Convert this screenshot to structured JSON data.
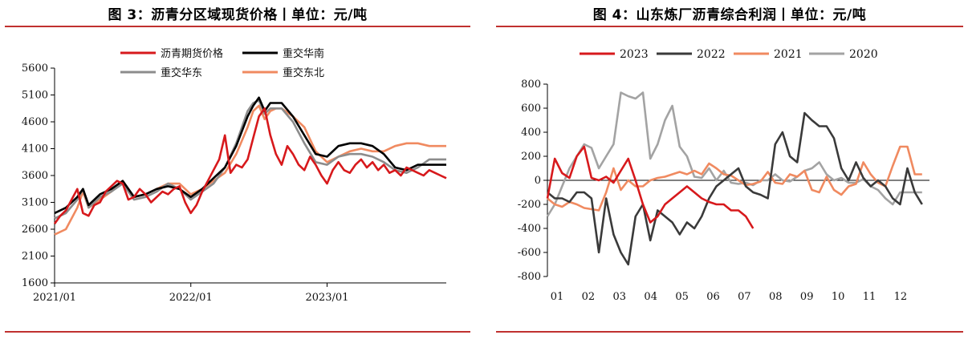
{
  "chart_data": [
    {
      "type": "line",
      "title": "图 3：沥青分区域现货价格丨单位：元/吨",
      "xlabel": "",
      "ylabel": "",
      "ylim": [
        1600,
        5600
      ],
      "yticks": [
        1600,
        2100,
        2600,
        3100,
        3600,
        4100,
        4600,
        5100,
        5600
      ],
      "xticks": [
        "2021/01",
        "2022/01",
        "2023/01"
      ],
      "legend": "top-center",
      "grid": false,
      "x_unit": "month index from 2021/01",
      "series": [
        {
          "name": "沥青期货价格",
          "color": "#d7191c",
          "x": [
            0,
            0.5,
            1,
            1.5,
            2,
            2.5,
            3,
            3.5,
            4,
            4.5,
            5,
            5.5,
            6,
            6.5,
            7,
            7.5,
            8,
            8.5,
            9,
            9.5,
            10,
            10.5,
            11,
            11.5,
            12,
            12.5,
            13,
            13.5,
            14,
            14.5,
            15,
            15.5,
            16,
            16.5,
            17,
            17.5,
            18,
            18.5,
            19,
            19.5,
            20,
            20.5,
            21,
            21.5,
            22,
            22.5,
            23,
            23.5,
            24,
            24.5,
            25,
            25.5,
            26,
            26.5,
            27,
            27.5,
            28,
            28.5,
            29,
            29.5,
            30,
            30.5,
            31,
            31.5,
            32,
            32.5,
            33,
            33.5,
            34,
            34.5
          ],
          "values": [
            2700,
            2850,
            2950,
            3150,
            3350,
            2900,
            2850,
            3050,
            3100,
            3300,
            3400,
            3500,
            3450,
            3150,
            3200,
            3350,
            3250,
            3100,
            3200,
            3300,
            3250,
            3350,
            3400,
            3100,
            2900,
            3050,
            3300,
            3500,
            3700,
            3900,
            4350,
            3650,
            3800,
            3750,
            3900,
            4300,
            4700,
            4850,
            4350,
            4000,
            3800,
            4150,
            4000,
            3800,
            3700,
            3950,
            3800,
            3600,
            3450,
            3700,
            3850,
            3700,
            3650,
            3800,
            3900,
            3750,
            3850,
            3700,
            3800,
            3650,
            3700,
            3600,
            3750,
            3700,
            3650,
            3600,
            3700,
            3650,
            3600,
            3550
          ]
        },
        {
          "name": "重交华南",
          "color": "#000000",
          "x": [
            0,
            1,
            2,
            2.5,
            3,
            4,
            5,
            6,
            7,
            8,
            9,
            10,
            11,
            12,
            13,
            14,
            15,
            16,
            17,
            17.5,
            18,
            18.5,
            19,
            19.5,
            20,
            21,
            22,
            23,
            24,
            25,
            26,
            27,
            28,
            29,
            30,
            31,
            32,
            33,
            34,
            34.5
          ],
          "values": [
            2900,
            3000,
            3200,
            3350,
            3050,
            3250,
            3350,
            3500,
            3200,
            3250,
            3350,
            3400,
            3350,
            3200,
            3350,
            3550,
            3750,
            4150,
            4700,
            4900,
            5050,
            4800,
            4950,
            4950,
            4950,
            4700,
            4350,
            4000,
            3950,
            4150,
            4200,
            4200,
            4150,
            4000,
            3750,
            3700,
            3800,
            3800,
            3800,
            3800
          ]
        },
        {
          "name": "重交华东",
          "color": "#8c8c8c",
          "x": [
            0,
            1,
            2,
            2.5,
            3,
            4,
            5,
            6,
            7,
            8,
            9,
            10,
            11,
            12,
            13,
            14,
            15,
            16,
            17,
            17.5,
            18,
            18.5,
            19,
            19.5,
            20,
            21,
            22,
            23,
            24,
            25,
            26,
            27,
            28,
            29,
            30,
            31,
            32,
            33,
            34,
            34.5
          ],
          "values": [
            2800,
            2900,
            3150,
            3350,
            3000,
            3200,
            3300,
            3450,
            3150,
            3200,
            3300,
            3450,
            3350,
            3150,
            3300,
            3450,
            3750,
            4200,
            4800,
            4950,
            5000,
            4750,
            4850,
            4850,
            4850,
            4600,
            4200,
            3850,
            3800,
            3950,
            4000,
            4000,
            3950,
            3850,
            3700,
            3650,
            3750,
            3900,
            3900,
            3900
          ]
        },
        {
          "name": "重交东北",
          "color": "#f08a60",
          "x": [
            0,
            1,
            2,
            2.5,
            3,
            4,
            5,
            6,
            7,
            8,
            9,
            10,
            11,
            12,
            13,
            14,
            15,
            16,
            17,
            17.5,
            18,
            18.5,
            19,
            19.5,
            20,
            21,
            22,
            23,
            24,
            25,
            26,
            27,
            28,
            29,
            30,
            31,
            32,
            33,
            34,
            34.5
          ],
          "values": [
            2500,
            2600,
            3000,
            3300,
            3000,
            3150,
            3300,
            3500,
            3200,
            3250,
            3350,
            3450,
            3450,
            3250,
            3350,
            3500,
            3650,
            4000,
            4500,
            4800,
            4900,
            4650,
            4800,
            4850,
            4850,
            4700,
            4500,
            4050,
            3850,
            3950,
            4050,
            4100,
            4050,
            4050,
            4150,
            4200,
            4200,
            4150,
            4150,
            4150
          ]
        }
      ]
    },
    {
      "type": "line",
      "title": "图 4：山东炼厂沥青综合利润丨单位：元/吨",
      "xlabel": "",
      "ylabel": "",
      "ylim": [
        -800,
        800
      ],
      "yticks": [
        -800,
        -600,
        -400,
        -200,
        0,
        200,
        400,
        600,
        800
      ],
      "categories": [
        "01",
        "02",
        "03",
        "04",
        "05",
        "06",
        "07",
        "08",
        "09",
        "10",
        "11",
        "12"
      ],
      "legend": "top-center",
      "grid": false,
      "x_unit": "week index 0–52",
      "series": [
        {
          "name": "2023",
          "color": "#d7191c",
          "x": [
            0,
            1,
            2,
            3,
            4,
            5,
            6,
            7,
            8,
            9,
            10,
            11,
            12,
            13,
            14,
            15,
            16,
            17,
            18,
            19,
            20,
            21,
            22,
            23,
            24,
            25,
            26,
            27,
            28
          ],
          "values": [
            -150,
            180,
            60,
            20,
            200,
            280,
            20,
            0,
            30,
            -20,
            80,
            180,
            0,
            -200,
            -350,
            -300,
            -200,
            -150,
            -100,
            -50,
            -100,
            -150,
            -180,
            -200,
            -200,
            -250,
            -250,
            -300,
            -400
          ]
        },
        {
          "name": "2022",
          "color": "#3a3a3a",
          "x": [
            0,
            1,
            2,
            3,
            4,
            5,
            6,
            7,
            8,
            9,
            10,
            11,
            12,
            13,
            14,
            15,
            16,
            17,
            18,
            19,
            20,
            21,
            22,
            23,
            24,
            25,
            26,
            27,
            28,
            29,
            30,
            31,
            32,
            33,
            34,
            35,
            36,
            37,
            38,
            39,
            40,
            41,
            42,
            43,
            44,
            45,
            46,
            47,
            48,
            49,
            50,
            51
          ],
          "values": [
            -100,
            -150,
            -150,
            -180,
            -100,
            -100,
            -150,
            -600,
            -150,
            -450,
            -600,
            -700,
            -300,
            -200,
            -500,
            -250,
            -300,
            -350,
            -450,
            -350,
            -400,
            -300,
            -150,
            -50,
            0,
            50,
            100,
            -50,
            -100,
            -120,
            -150,
            300,
            400,
            200,
            150,
            560,
            500,
            450,
            450,
            350,
            100,
            0,
            150,
            20,
            -50,
            0,
            -50,
            -150,
            -200,
            100,
            -100,
            -200
          ]
        },
        {
          "name": "2021",
          "color": "#f08a60",
          "x": [
            0,
            1,
            2,
            3,
            4,
            5,
            6,
            7,
            8,
            9,
            10,
            11,
            12,
            13,
            14,
            15,
            16,
            17,
            18,
            19,
            20,
            21,
            22,
            23,
            24,
            25,
            26,
            27,
            28,
            29,
            30,
            31,
            32,
            33,
            34,
            35,
            36,
            37,
            38,
            39,
            40,
            41,
            42,
            43,
            44,
            45,
            46,
            47,
            48,
            49,
            50,
            51
          ],
          "values": [
            -150,
            -200,
            -220,
            -180,
            -200,
            -230,
            -240,
            -250,
            -100,
            100,
            -80,
            0,
            -50,
            -50,
            0,
            20,
            30,
            50,
            70,
            50,
            80,
            50,
            140,
            100,
            50,
            40,
            0,
            -40,
            -30,
            -10,
            70,
            -20,
            -30,
            50,
            30,
            80,
            -80,
            -100,
            30,
            -80,
            -120,
            -50,
            -30,
            150,
            50,
            -20,
            -50,
            120,
            280,
            280,
            50,
            50
          ]
        },
        {
          "name": "2020",
          "color": "#a3a3a3",
          "x": [
            0,
            1,
            2,
            3,
            4,
            5,
            6,
            7,
            8,
            9,
            10,
            11,
            12,
            13,
            14,
            15,
            16,
            17,
            18,
            19,
            20,
            21,
            22,
            23,
            24,
            25,
            26,
            27,
            28,
            29,
            30,
            31,
            32,
            33,
            34,
            35,
            36,
            37,
            38,
            39,
            40,
            41,
            42,
            43,
            44,
            45,
            46,
            47,
            48,
            49,
            50,
            51
          ],
          "values": [
            -300,
            -200,
            -50,
            100,
            200,
            300,
            270,
            100,
            200,
            300,
            730,
            700,
            680,
            730,
            180,
            300,
            500,
            620,
            280,
            200,
            30,
            20,
            100,
            0,
            80,
            -20,
            -30,
            -20,
            -40,
            0,
            0,
            50,
            0,
            -10,
            30,
            80,
            100,
            150,
            50,
            0,
            20,
            -20,
            -20,
            10,
            -50,
            -80,
            -150,
            -200,
            -100,
            -100,
            -100,
            -100
          ]
        }
      ]
    }
  ]
}
